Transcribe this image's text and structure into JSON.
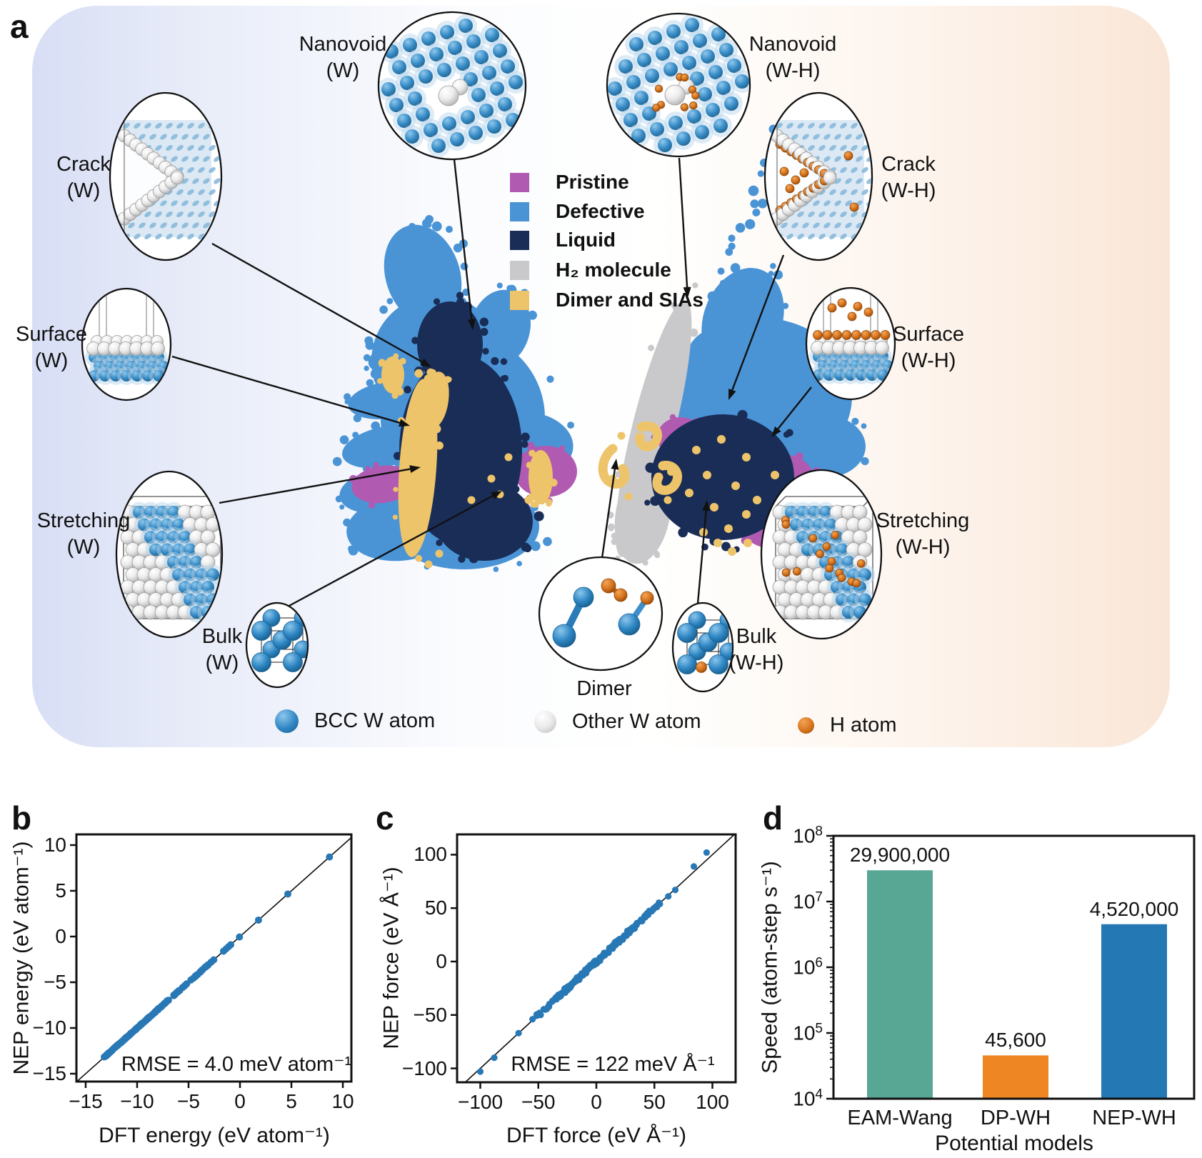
{
  "panel_a": {
    "label": "a",
    "scatter_legend": [
      {
        "label": "Pristine",
        "color": "#b05ab2"
      },
      {
        "label": "Defective",
        "color": "#4a94d6"
      },
      {
        "label": "Liquid",
        "color": "#192d57"
      },
      {
        "label": "H₂ molecule",
        "color": "#c9c9cc"
      },
      {
        "label": "Dimer and SIAs",
        "color": "#eec46a"
      }
    ],
    "structures": {
      "nanovoid_w": {
        "line1": "Nanovoid",
        "line2": "(W)"
      },
      "crack_w": {
        "line1": "Crack",
        "line2": "(W)"
      },
      "surface_w": {
        "line1": "Surface",
        "line2": "(W)"
      },
      "stretching_w": {
        "line1": "Stretching",
        "line2": "(W)"
      },
      "bulk_w": {
        "line1": "Bulk",
        "line2": "(W)"
      },
      "dimer": {
        "line1": "Dimer",
        "line2": ""
      },
      "nanovoid_wh": {
        "line1": "Nanovoid",
        "line2": "(W-H)"
      },
      "crack_wh": {
        "line1": "Crack",
        "line2": "(W-H)"
      },
      "surface_wh": {
        "line1": "Surface",
        "line2": "(W-H)"
      },
      "stretching_wh": {
        "line1": "Stretching",
        "line2": "(W-H)"
      },
      "bulk_wh": {
        "line1": "Bulk",
        "line2": "(W-H)"
      }
    },
    "atom_legend": [
      {
        "label": "BCC W atom",
        "color": "#2f87c4"
      },
      {
        "label": "Other W atom",
        "color": "#efefef"
      },
      {
        "label": "H atom",
        "color": "#d8741c"
      }
    ]
  },
  "panels": {
    "b_label": "b",
    "c_label": "c",
    "d_label": "d"
  },
  "chart_data": [
    {
      "panel": "b",
      "type": "scatter",
      "xlabel": "DFT energy (eV atom⁻¹)",
      "ylabel": "NEP energy (eV atom⁻¹)",
      "xticks": [
        -15,
        -10,
        -5,
        0,
        5,
        10
      ],
      "yticks": [
        10,
        5,
        0,
        -5,
        -10,
        -15
      ],
      "xlim": [
        -15.9,
        10.83
      ],
      "ylim": [
        -15.86,
        11.17
      ],
      "annotation": "RMSE = 4.0 meV atom⁻¹",
      "identity_line": true,
      "point_color": "#2878b5",
      "points": {
        "diagonal_bands": [
          {
            "from": -13.2,
            "to": -8.8,
            "n": 85
          },
          {
            "from": -8.8,
            "to": -5.0,
            "n": 44
          },
          {
            "from": -5.0,
            "to": -3.0,
            "n": 18
          }
        ],
        "diagonal_singles": [
          -2.8,
          -2.55,
          -1.6,
          -1.35,
          -1.1,
          -0.9,
          -0.05,
          1.8,
          4.65,
          8.7
        ]
      }
    },
    {
      "panel": "c",
      "type": "scatter",
      "xlabel": "DFT force (eV Å⁻¹)",
      "ylabel": "NEP force (eV Å⁻¹)",
      "xticks": [
        -100,
        -50,
        0,
        50,
        100
      ],
      "yticks": [
        100,
        50,
        0,
        -50,
        -100
      ],
      "xlim": [
        -120,
        120
      ],
      "ylim": [
        -113,
        119
      ],
      "annotation": "RMSE = 122 meV Å⁻¹",
      "identity_line": true,
      "point_color": "#2878b5",
      "points": {
        "diagonal_bands": [
          {
            "from": -35,
            "to": 35,
            "n": 190,
            "jitter": 2.5
          },
          {
            "from": -52,
            "to": -35,
            "n": 16,
            "jitter": 2.0
          },
          {
            "from": 35,
            "to": 55,
            "n": 22,
            "jitter": 2.0
          }
        ],
        "outliers": [
          [
            -100,
            -103
          ],
          [
            -88,
            -90
          ],
          [
            -67,
            -67
          ],
          [
            -55,
            -54
          ],
          [
            -48,
            -50
          ],
          [
            -44,
            -45
          ],
          [
            62,
            61
          ],
          [
            68,
            67
          ],
          [
            84,
            89
          ],
          [
            95,
            102
          ]
        ]
      }
    },
    {
      "panel": "d",
      "type": "bar",
      "categories": [
        "EAM-Wang",
        "DP-WH",
        "NEP-WH"
      ],
      "values": [
        29900000,
        45600,
        4520000
      ],
      "value_labels": [
        "29,900,000",
        "45,600",
        "4,520,000"
      ],
      "bar_colors": [
        "#58a795",
        "#ee8723",
        "#2478b4"
      ],
      "xlabel": "Potential models",
      "ylabel": "Speed (atom-step s⁻¹)",
      "yscale": "log",
      "ylim": [
        10000,
        100000000
      ],
      "ytick_exponents": [
        4,
        5,
        6,
        7,
        8
      ]
    }
  ]
}
